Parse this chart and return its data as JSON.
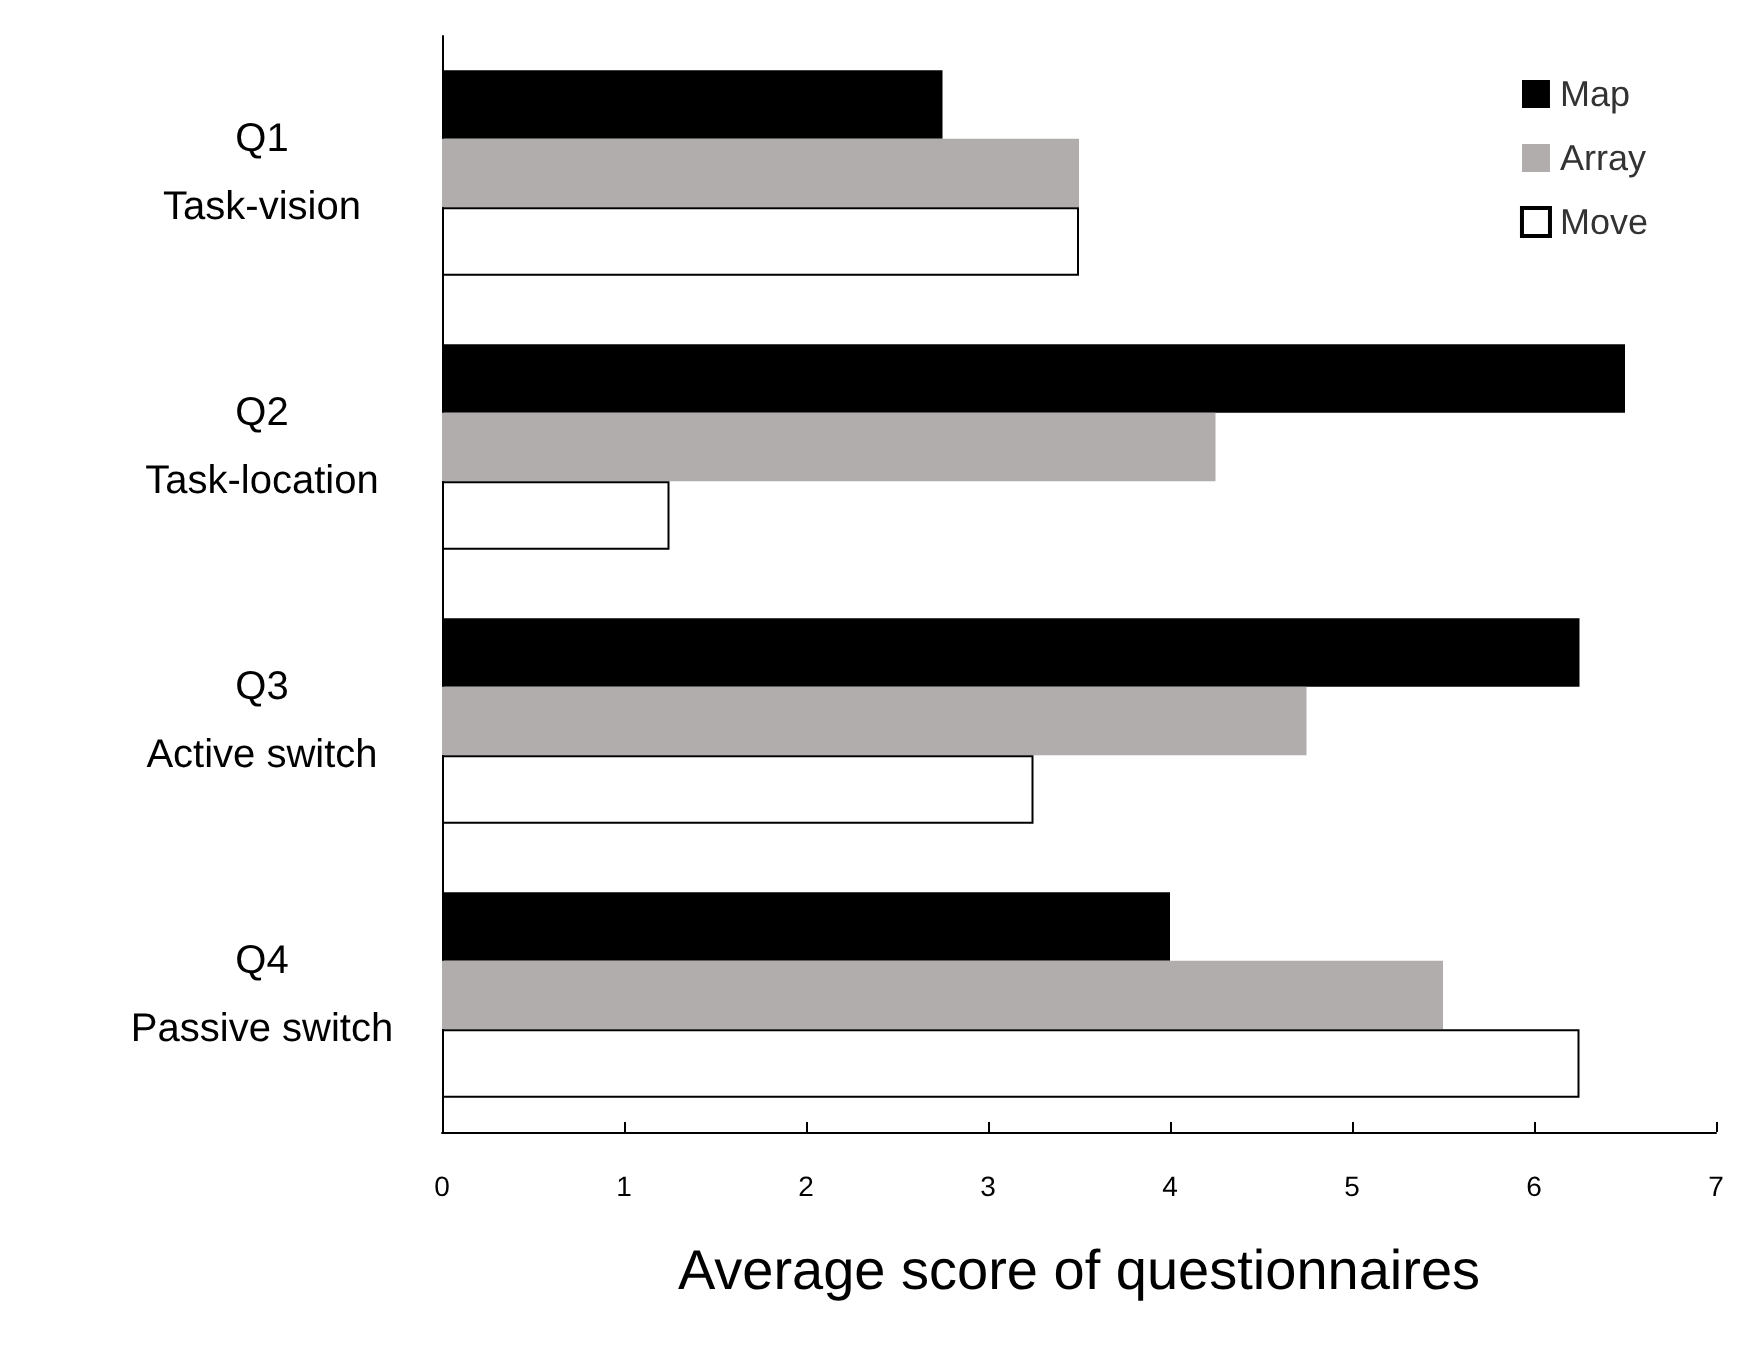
{
  "chart_data": {
    "type": "bar",
    "orientation": "horizontal",
    "xlabel": "Average score of questionnaires",
    "categories": [
      "Q1\nTask-vision",
      "Q2\nTask-location",
      "Q3\nActive switch",
      "Q4\nPassive switch"
    ],
    "series": [
      {
        "name": "Map",
        "color": "#000000",
        "values": [
          2.75,
          6.5,
          6.25,
          4
        ]
      },
      {
        "name": "Array",
        "color": "#b0adac",
        "values": [
          3.5,
          4.25,
          4.75,
          5.5
        ]
      },
      {
        "name": "Move",
        "color": "#ffffff",
        "values": [
          3.5,
          1.25,
          3.25,
          6.25
        ]
      }
    ],
    "xlim": [
      0,
      7
    ],
    "xticks": [
      0,
      1,
      2,
      3,
      4,
      5,
      6,
      7
    ],
    "grid": false,
    "legend": "top right"
  }
}
